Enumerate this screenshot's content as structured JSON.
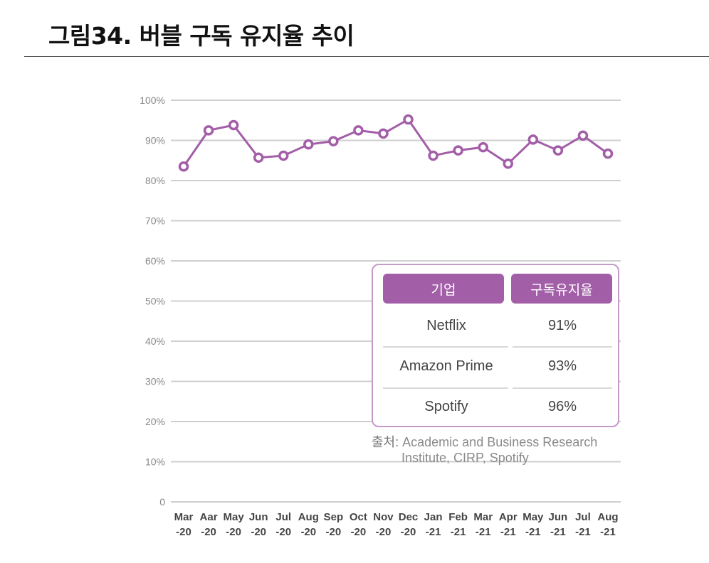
{
  "title": "그림34.  버블 구독 유지율 추이",
  "chart_data": {
    "type": "line",
    "title": "",
    "xlabel": "",
    "ylabel": "",
    "ylim": [
      0,
      100
    ],
    "y_ticks": [
      "0",
      "10%",
      "20%",
      "30%",
      "40%",
      "50%",
      "60%",
      "70%",
      "80%",
      "90%",
      "100%"
    ],
    "y_tick_values": [
      0,
      10,
      20,
      30,
      40,
      50,
      60,
      70,
      80,
      90,
      100
    ],
    "categories": [
      [
        "Mar",
        "-20"
      ],
      [
        "Aar",
        "-20"
      ],
      [
        "May",
        "-20"
      ],
      [
        "Jun",
        "-20"
      ],
      [
        "Jul",
        "-20"
      ],
      [
        "Aug",
        "-20"
      ],
      [
        "Sep",
        "-20"
      ],
      [
        "Oct",
        "-20"
      ],
      [
        "Nov",
        "-20"
      ],
      [
        "Dec",
        "-20"
      ],
      [
        "Jan",
        "-21"
      ],
      [
        "Feb",
        "-21"
      ],
      [
        "Mar",
        "-21"
      ],
      [
        "Apr",
        "-21"
      ],
      [
        "May",
        "-21"
      ],
      [
        "Jun",
        "-21"
      ],
      [
        "Jul",
        "-21"
      ],
      [
        "Aug",
        "-21"
      ]
    ],
    "series": [
      {
        "name": "버블 구독 유지율",
        "values": [
          83.5,
          92.5,
          93.8,
          85.7,
          86.2,
          89.0,
          89.8,
          92.5,
          91.7,
          95.2,
          86.2,
          87.5,
          88.3,
          84.2,
          90.2,
          87.5,
          91.2,
          86.7
        ]
      }
    ],
    "grid": true
  },
  "comparison_table": {
    "headers": [
      "기업",
      "구독유지율"
    ],
    "rows": [
      {
        "company": "Netflix",
        "rate": "91%"
      },
      {
        "company": "Amazon Prime",
        "rate": "93%"
      },
      {
        "company": "Spotify",
        "rate": "96%"
      }
    ]
  },
  "source": {
    "label": "출처:",
    "line1": "Academic and Business Research",
    "line2": "Institute, CIRP, Spotify"
  },
  "colors": {
    "accent": "#a35ea8",
    "grid": "#cfcfcf"
  }
}
